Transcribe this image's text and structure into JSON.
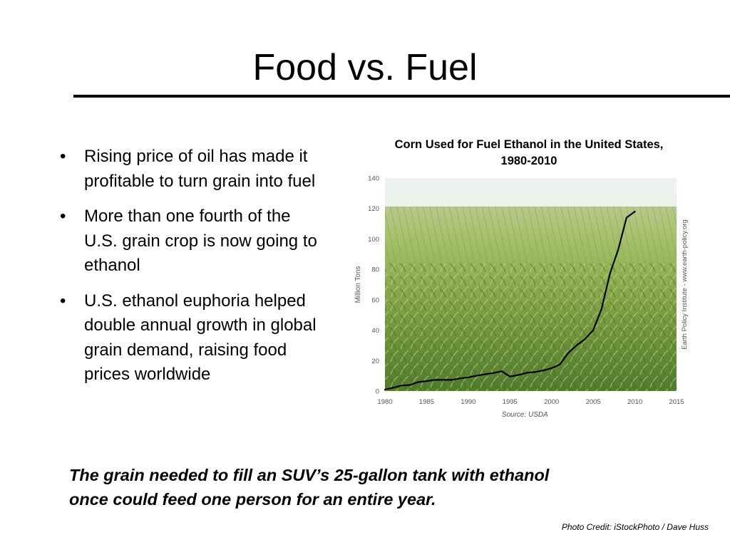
{
  "slide": {
    "title": "Food vs. Fuel",
    "bullets": [
      "Rising price of oil has made it profitable to turn grain into fuel",
      "More than one fourth of the U.S. grain crop is now going to ethanol",
      "U.S. ethanol euphoria helped double annual growth in global grain demand, raising food prices worldwide"
    ],
    "bullet_glyph": "•",
    "tagline_line1": "The grain needed to fill an SUV’s 25-gallon tank with ethanol",
    "tagline_line2": "once could feed one person for an entire year.",
    "photo_credit": "Photo Credit: iStockPhoto / Dave Huss"
  },
  "chart_data": {
    "type": "line",
    "title_line1": "Corn Used for Fuel Ethanol in the United States,",
    "title_line2": "1980-2010",
    "xlabel": "",
    "ylabel": "Million Tons",
    "source": "Source: USDA",
    "side_note": "Earth Policy Institute - www.earth-policy.org",
    "xlim": [
      1980,
      2015
    ],
    "ylim": [
      0,
      140
    ],
    "xticks": [
      1980,
      1985,
      1990,
      1995,
      2000,
      2005,
      2010,
      2015
    ],
    "yticks": [
      0,
      20,
      40,
      60,
      80,
      100,
      120,
      140
    ],
    "background": "photo of a green cornfield under a pale sky",
    "line_color": "#000000",
    "series": [
      {
        "x": [
          1980,
          1981,
          1982,
          1983,
          1984,
          1985,
          1986,
          1987,
          1988,
          1989,
          1990,
          1991,
          1992,
          1993,
          1994,
          1995,
          1996,
          1997,
          1998,
          1999,
          2000,
          2001,
          2002,
          2003,
          2004,
          2005,
          2006,
          2007,
          2008,
          2009,
          2010
        ],
        "y": [
          0.9,
          2.2,
          3.6,
          4.0,
          5.9,
          6.5,
          7.3,
          7.3,
          7.3,
          8.3,
          9.0,
          10.0,
          11.0,
          11.8,
          13.0,
          9.5,
          10.5,
          12.0,
          12.5,
          13.5,
          15.0,
          17.5,
          25.0,
          30.0,
          34.0,
          40.0,
          54.0,
          77.0,
          93.0,
          114.0,
          118.0
        ]
      }
    ]
  }
}
